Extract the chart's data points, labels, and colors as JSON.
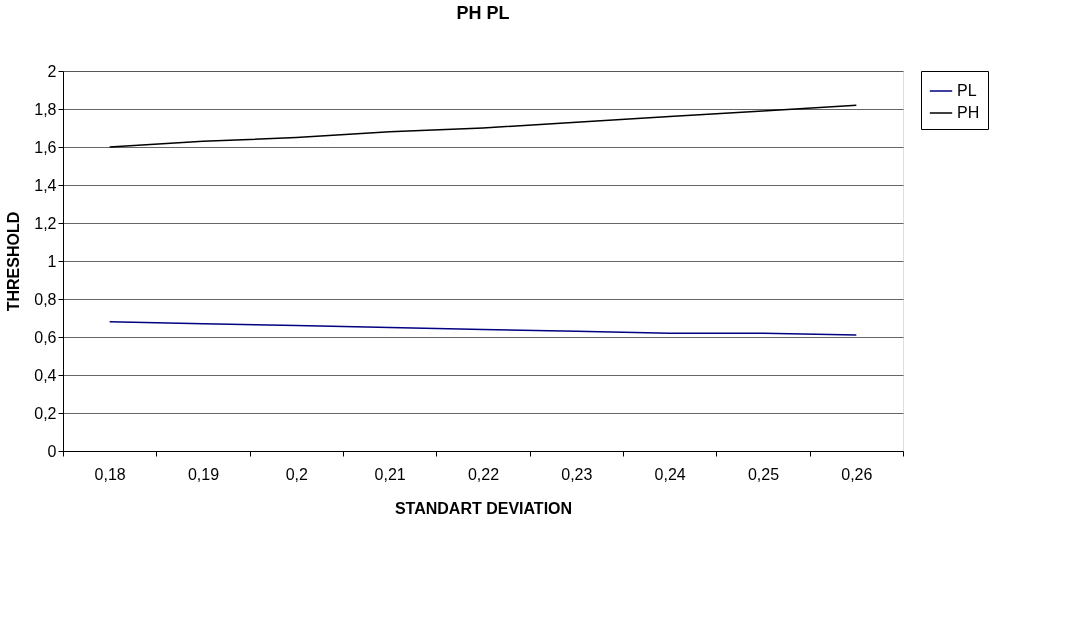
{
  "chart_data": {
    "type": "line",
    "title": "PH PL",
    "xlabel": "STANDART DEVIATION",
    "ylabel": "THRESHOLD",
    "categories": [
      "0,18",
      "0,19",
      "0,2",
      "0,21",
      "0,22",
      "0,23",
      "0,24",
      "0,25",
      "0,26"
    ],
    "series": [
      {
        "name": "PL",
        "color": "#000080",
        "values": [
          0.68,
          0.67,
          0.66,
          0.65,
          0.64,
          0.63,
          0.62,
          0.62,
          0.61
        ]
      },
      {
        "name": "PH",
        "color": "#000000",
        "values": [
          1.6,
          1.63,
          1.65,
          1.68,
          1.7,
          1.73,
          1.76,
          1.79,
          1.82
        ]
      }
    ],
    "ylim": [
      0,
      2
    ],
    "yticks": [
      0,
      {
        "value": 0.2,
        "label": "0,2"
      },
      {
        "value": 0.4,
        "label": "0,4"
      },
      {
        "value": 0.6,
        "label": "0,6"
      },
      {
        "value": 0.8,
        "label": "0,8"
      },
      1,
      {
        "value": 1.2,
        "label": "1,2"
      },
      {
        "value": 1.4,
        "label": "1,4"
      },
      {
        "value": 1.6,
        "label": "1,6"
      },
      {
        "value": 1.8,
        "label": "1,8"
      },
      2
    ],
    "grid": "y",
    "legend": "right",
    "marker": "none",
    "line_style": "solid"
  }
}
